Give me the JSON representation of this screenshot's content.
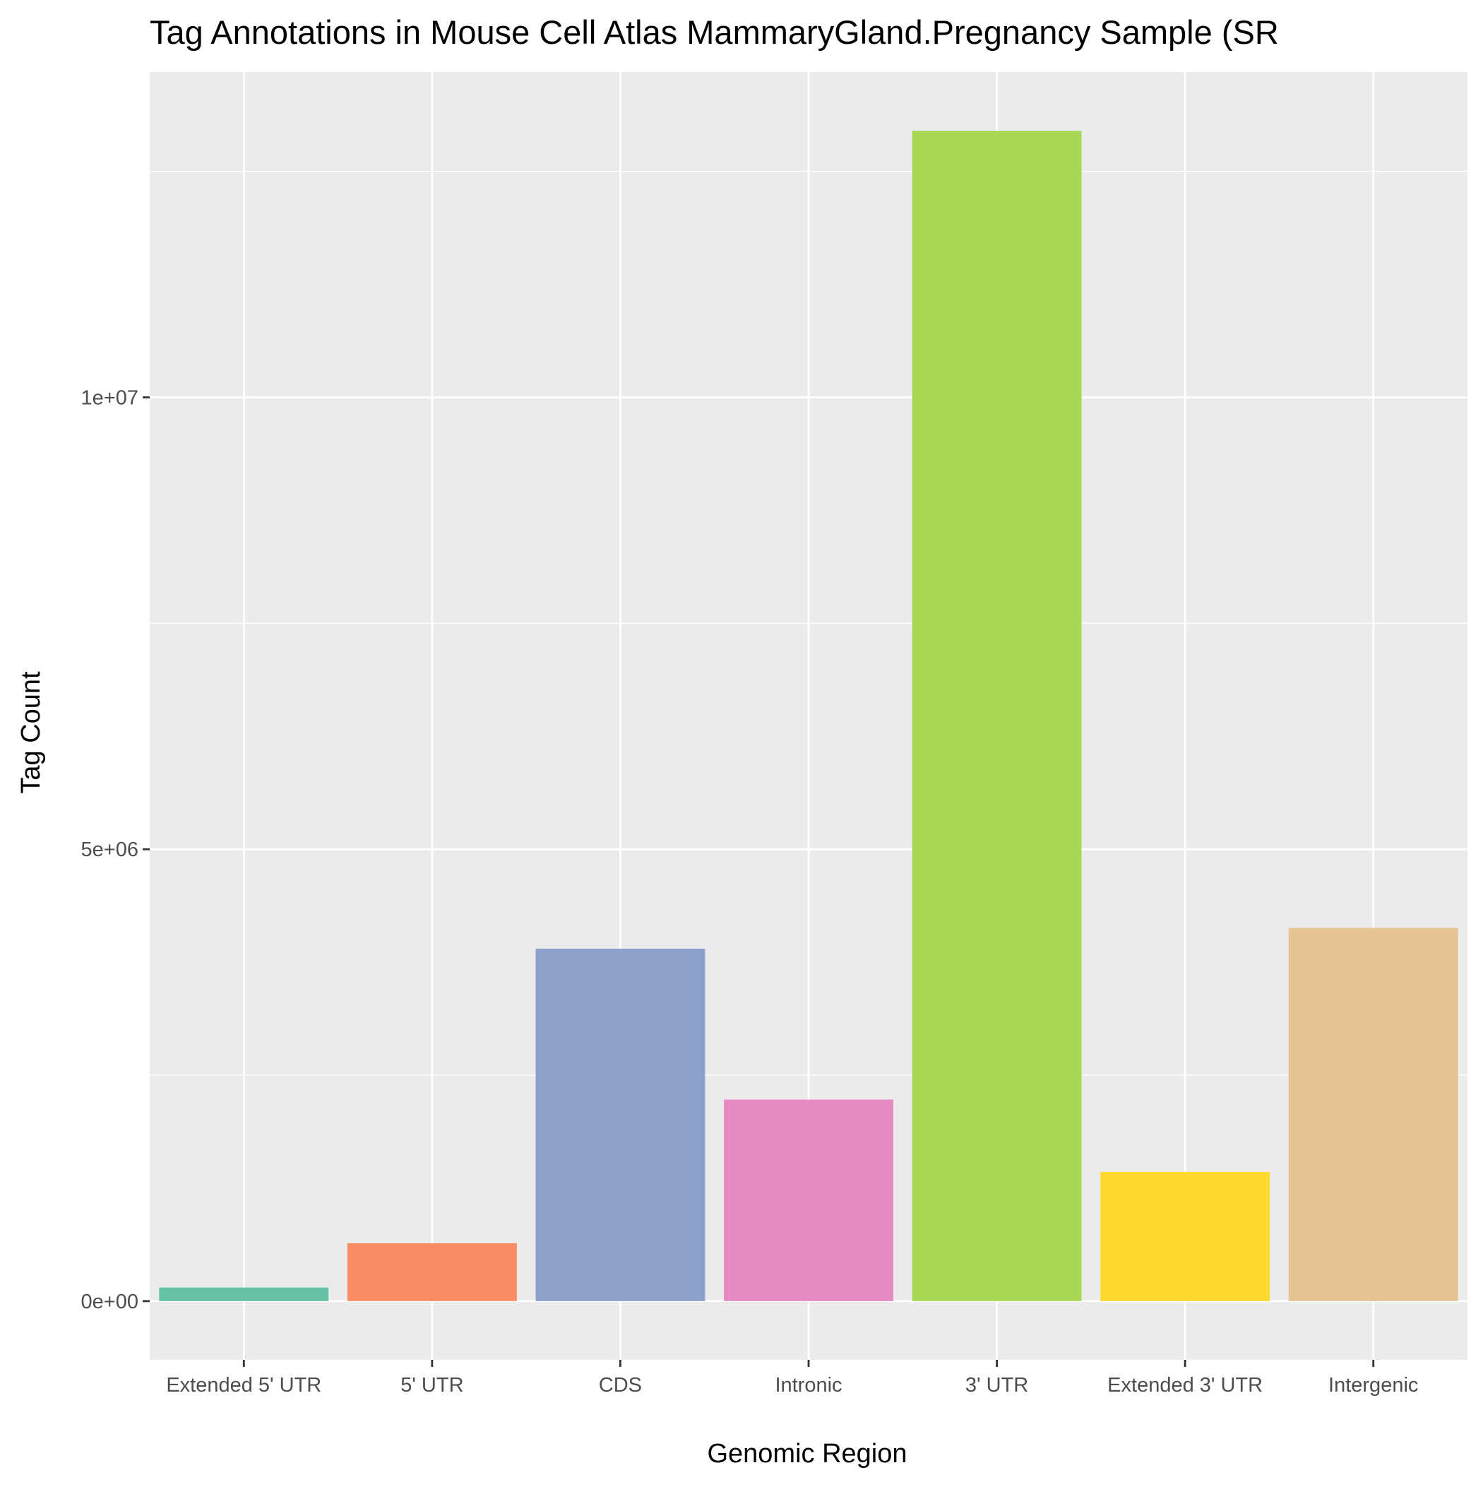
{
  "chart_data": {
    "type": "bar",
    "title": "Tag Annotations in Mouse Cell Atlas MammaryGland.Pregnancy Sample (SR",
    "xlabel": "Genomic Region",
    "ylabel": "Tag Count",
    "categories": [
      "Extended 5' UTR",
      "5' UTR",
      "CDS",
      "Intronic",
      "3' UTR",
      "Extended 3' UTR",
      "Intergenic"
    ],
    "values": [
      150000,
      640000,
      3900000,
      2230000,
      12950000,
      1430000,
      4130000
    ],
    "colors": [
      "#66c2a5",
      "#fc8d62",
      "#8da0cb",
      "#e78ac3",
      "#a6d854",
      "#ffd92f",
      "#e5c494"
    ],
    "ylim": [
      -650000,
      13600000
    ],
    "yticks": [
      {
        "value": 0,
        "label": "0e+00"
      },
      {
        "value": 5000000,
        "label": "5e+06"
      },
      {
        "value": 10000000,
        "label": "1e+07"
      }
    ],
    "y_minor_ticks": [
      2500000,
      7500000,
      12500000
    ],
    "grid": true,
    "legend": "none",
    "panel_background": "#ebebeb",
    "grid_color": "#ffffff"
  }
}
